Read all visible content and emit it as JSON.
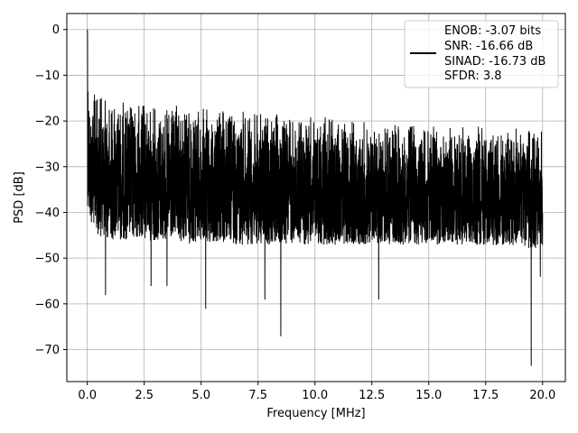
{
  "chart_data": {
    "type": "line",
    "title": "",
    "xlabel": "Frequency [MHz]",
    "ylabel": "PSD [dB]",
    "xlim": [
      -0.9,
      21.0
    ],
    "ylim": [
      -77,
      3.5
    ],
    "xticks": [
      0.0,
      2.5,
      5.0,
      7.5,
      10.0,
      12.5,
      15.0,
      17.5,
      20.0
    ],
    "xtick_labels": [
      "0.0",
      "2.5",
      "5.0",
      "7.5",
      "10.0",
      "12.5",
      "15.0",
      "17.5",
      "20.0"
    ],
    "yticks": [
      0,
      -10,
      -20,
      -30,
      -40,
      -50,
      -60,
      -70
    ],
    "ytick_labels": [
      "0",
      "−10",
      "−20",
      "−30",
      "−40",
      "−50",
      "−60",
      "−70"
    ],
    "grid": true,
    "legend": {
      "placement": "top-right",
      "entries": [
        "ENOB: -3.07 bits",
        "SNR: -16.66 dB",
        "SINAD: -16.73 dB",
        "SFDR: 3.8"
      ]
    },
    "series": [
      {
        "color": "#000000",
        "x_range": [
          0.0,
          20.0
        ],
        "envelope": {
          "x": [
            0.0,
            0.05,
            0.1,
            0.5,
            1.0,
            2.5,
            5.0,
            7.5,
            10.0,
            12.5,
            15.0,
            17.5,
            20.0
          ],
          "upper": [
            0,
            -5,
            -13,
            -14,
            -15,
            -16,
            -17,
            -18,
            -19,
            -20,
            -21,
            -21,
            -22
          ],
          "lower": [
            -38,
            -40,
            -42,
            -45,
            -46,
            -46,
            -47,
            -47,
            -47,
            -47,
            -47,
            -47,
            -48
          ]
        },
        "notable_points": [
          {
            "x": 0.0,
            "y": 0
          },
          {
            "x": 0.8,
            "y": -58
          },
          {
            "x": 2.8,
            "y": -56
          },
          {
            "x": 3.5,
            "y": -56
          },
          {
            "x": 5.2,
            "y": -61
          },
          {
            "x": 7.8,
            "y": -59
          },
          {
            "x": 8.5,
            "y": -67
          },
          {
            "x": 12.8,
            "y": -59
          },
          {
            "x": 19.5,
            "y": -73.5
          },
          {
            "x": 19.9,
            "y": -54
          }
        ]
      }
    ]
  }
}
